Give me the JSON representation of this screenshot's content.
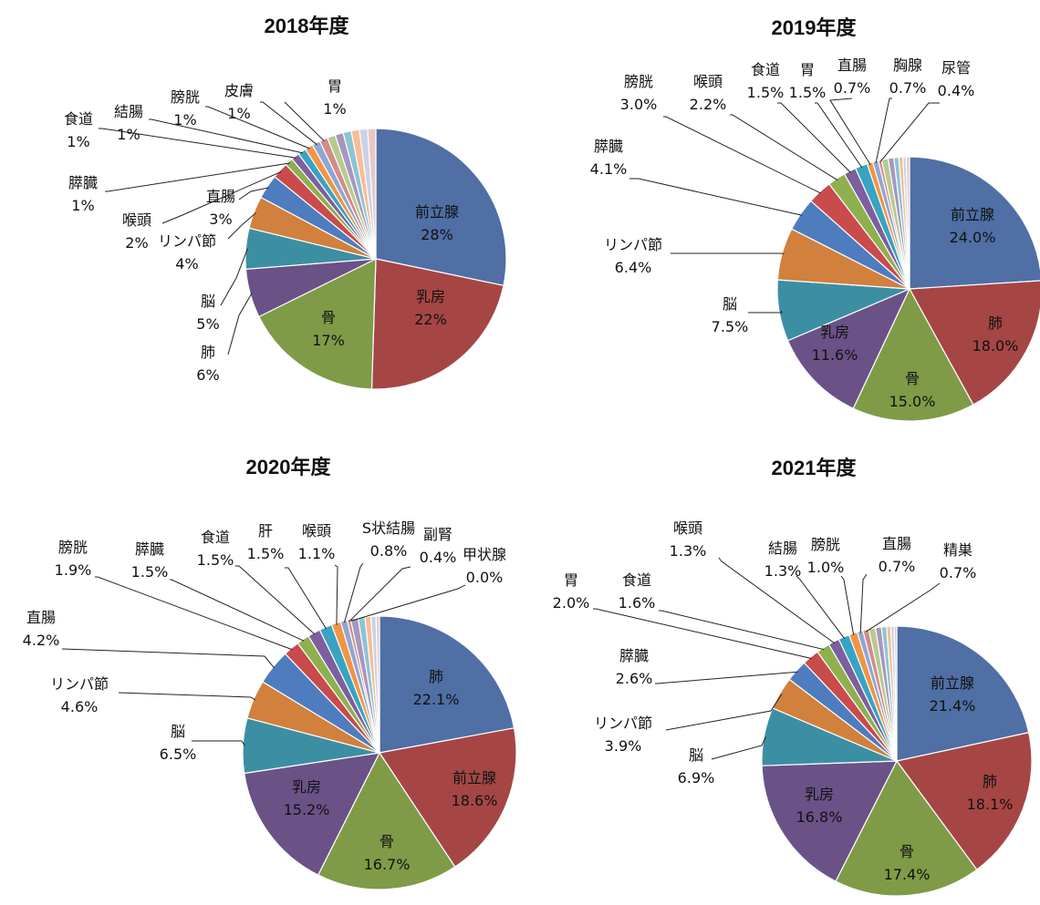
{
  "colors": [
    "#4F6FA5",
    "#A54645",
    "#7F9B47",
    "#6A5287",
    "#3C8FA3",
    "#D1803D",
    "#4E7CBF",
    "#C94B4B",
    "#8EB04F",
    "#7D5F9F",
    "#39A3C1",
    "#EF9546",
    "#8FA7D1",
    "#D28C8A",
    "#B5CB8F",
    "#A796BF",
    "#8EC3D4",
    "#F7BE92",
    "#C9D2E7",
    "#E7C8C7"
  ],
  "chart_data": [
    {
      "type": "pie",
      "title": "2018年度",
      "slices": [
        {
          "label": "前立腺",
          "value": 28,
          "pct": "28%"
        },
        {
          "label": "乳房",
          "value": 22,
          "pct": "22%"
        },
        {
          "label": "骨",
          "value": 17,
          "pct": "17%"
        },
        {
          "label": "肺",
          "value": 6,
          "pct": "6%"
        },
        {
          "label": "脳",
          "value": 5,
          "pct": "5%"
        },
        {
          "label": "リンパ節",
          "value": 4,
          "pct": "4%"
        },
        {
          "label": "直腸",
          "value": 3,
          "pct": "3%"
        },
        {
          "label": "喉頭",
          "value": 2,
          "pct": "2%"
        },
        {
          "label": "膵臓",
          "value": 1,
          "pct": "1%"
        },
        {
          "label": "食道",
          "value": 1,
          "pct": "1%"
        },
        {
          "label": "結腸",
          "value": 1,
          "pct": "1%"
        },
        {
          "label": "膀胱",
          "value": 1,
          "pct": "1%"
        },
        {
          "label": "皮膚",
          "value": 1,
          "pct": "1%"
        },
        {
          "label": "胃",
          "value": 1,
          "pct": "1%"
        },
        {
          "label": "",
          "value": 1,
          "pct": ""
        },
        {
          "label": "",
          "value": 1,
          "pct": ""
        },
        {
          "label": "",
          "value": 1,
          "pct": ""
        },
        {
          "label": "",
          "value": 1,
          "pct": ""
        },
        {
          "label": "",
          "value": 1,
          "pct": ""
        },
        {
          "label": "",
          "value": 1,
          "pct": ""
        }
      ]
    },
    {
      "type": "pie",
      "title": "2019年度",
      "slices": [
        {
          "label": "前立腺",
          "value": 24.0,
          "pct": "24.0%"
        },
        {
          "label": "肺",
          "value": 18.0,
          "pct": "18.0%"
        },
        {
          "label": "骨",
          "value": 15.0,
          "pct": "15.0%"
        },
        {
          "label": "乳房",
          "value": 11.6,
          "pct": "11.6%"
        },
        {
          "label": "脳",
          "value": 7.5,
          "pct": "7.5%"
        },
        {
          "label": "リンパ節",
          "value": 6.4,
          "pct": "6.4%"
        },
        {
          "label": "膵臓",
          "value": 4.1,
          "pct": "4.1%"
        },
        {
          "label": "膀胱",
          "value": 3.0,
          "pct": "3.0%"
        },
        {
          "label": "喉頭",
          "value": 2.2,
          "pct": "2.2%"
        },
        {
          "label": "食道",
          "value": 1.5,
          "pct": "1.5%"
        },
        {
          "label": "胃",
          "value": 1.5,
          "pct": "1.5%"
        },
        {
          "label": "直腸",
          "value": 0.7,
          "pct": "0.7%"
        },
        {
          "label": "胸腺",
          "value": 0.7,
          "pct": "0.7%"
        },
        {
          "label": "尿管",
          "value": 0.4,
          "pct": "0.4%"
        },
        {
          "label": "",
          "value": 0.8,
          "pct": ""
        },
        {
          "label": "",
          "value": 0.7,
          "pct": ""
        },
        {
          "label": "",
          "value": 0.6,
          "pct": ""
        },
        {
          "label": "",
          "value": 0.5,
          "pct": ""
        },
        {
          "label": "",
          "value": 0.4,
          "pct": ""
        },
        {
          "label": "",
          "value": 0.4,
          "pct": ""
        }
      ]
    },
    {
      "type": "pie",
      "title": "2020年度",
      "slices": [
        {
          "label": "肺",
          "value": 22.1,
          "pct": "22.1%"
        },
        {
          "label": "前立腺",
          "value": 18.6,
          "pct": "18.6%"
        },
        {
          "label": "骨",
          "value": 16.7,
          "pct": "16.7%"
        },
        {
          "label": "乳房",
          "value": 15.2,
          "pct": "15.2%"
        },
        {
          "label": "脳",
          "value": 6.5,
          "pct": "6.5%"
        },
        {
          "label": "リンパ節",
          "value": 4.6,
          "pct": "4.6%"
        },
        {
          "label": "直腸",
          "value": 4.2,
          "pct": "4.2%"
        },
        {
          "label": "膀胱",
          "value": 1.9,
          "pct": "1.9%"
        },
        {
          "label": "膵臓",
          "value": 1.5,
          "pct": "1.5%"
        },
        {
          "label": "食道",
          "value": 1.5,
          "pct": "1.5%"
        },
        {
          "label": "肝",
          "value": 1.5,
          "pct": "1.5%"
        },
        {
          "label": "喉頭",
          "value": 1.1,
          "pct": "1.1%"
        },
        {
          "label": "S状結腸",
          "value": 0.8,
          "pct": "0.8%"
        },
        {
          "label": "副腎",
          "value": 0.4,
          "pct": "0.4%"
        },
        {
          "label": "甲状腺",
          "value": 0.0,
          "pct": "0.0%"
        },
        {
          "label": "",
          "value": 0.9,
          "pct": ""
        },
        {
          "label": "",
          "value": 0.8,
          "pct": ""
        },
        {
          "label": "",
          "value": 0.7,
          "pct": ""
        },
        {
          "label": "",
          "value": 0.6,
          "pct": ""
        },
        {
          "label": "",
          "value": 0.4,
          "pct": ""
        }
      ]
    },
    {
      "type": "pie",
      "title": "2021年度",
      "slices": [
        {
          "label": "前立腺",
          "value": 21.4,
          "pct": "21.4%"
        },
        {
          "label": "肺",
          "value": 18.1,
          "pct": "18.1%"
        },
        {
          "label": "骨",
          "value": 17.4,
          "pct": "17.4%"
        },
        {
          "label": "乳房",
          "value": 16.8,
          "pct": "16.8%"
        },
        {
          "label": "脳",
          "value": 6.9,
          "pct": "6.9%"
        },
        {
          "label": "リンパ節",
          "value": 3.9,
          "pct": "3.9%"
        },
        {
          "label": "膵臓",
          "value": 2.6,
          "pct": "2.6%"
        },
        {
          "label": "胃",
          "value": 2.0,
          "pct": "2.0%"
        },
        {
          "label": "食道",
          "value": 1.6,
          "pct": "1.6%"
        },
        {
          "label": "喉頭",
          "value": 1.3,
          "pct": "1.3%"
        },
        {
          "label": "結腸",
          "value": 1.3,
          "pct": "1.3%"
        },
        {
          "label": "膀胱",
          "value": 1.0,
          "pct": "1.0%"
        },
        {
          "label": "直腸",
          "value": 0.7,
          "pct": "0.7%"
        },
        {
          "label": "精巣",
          "value": 0.7,
          "pct": "0.7%"
        },
        {
          "label": "",
          "value": 0.8,
          "pct": ""
        },
        {
          "label": "",
          "value": 0.7,
          "pct": ""
        },
        {
          "label": "",
          "value": 0.6,
          "pct": ""
        },
        {
          "label": "",
          "value": 0.5,
          "pct": ""
        },
        {
          "label": "",
          "value": 0.4,
          "pct": ""
        },
        {
          "label": "",
          "value": 0.3,
          "pct": ""
        }
      ]
    }
  ]
}
